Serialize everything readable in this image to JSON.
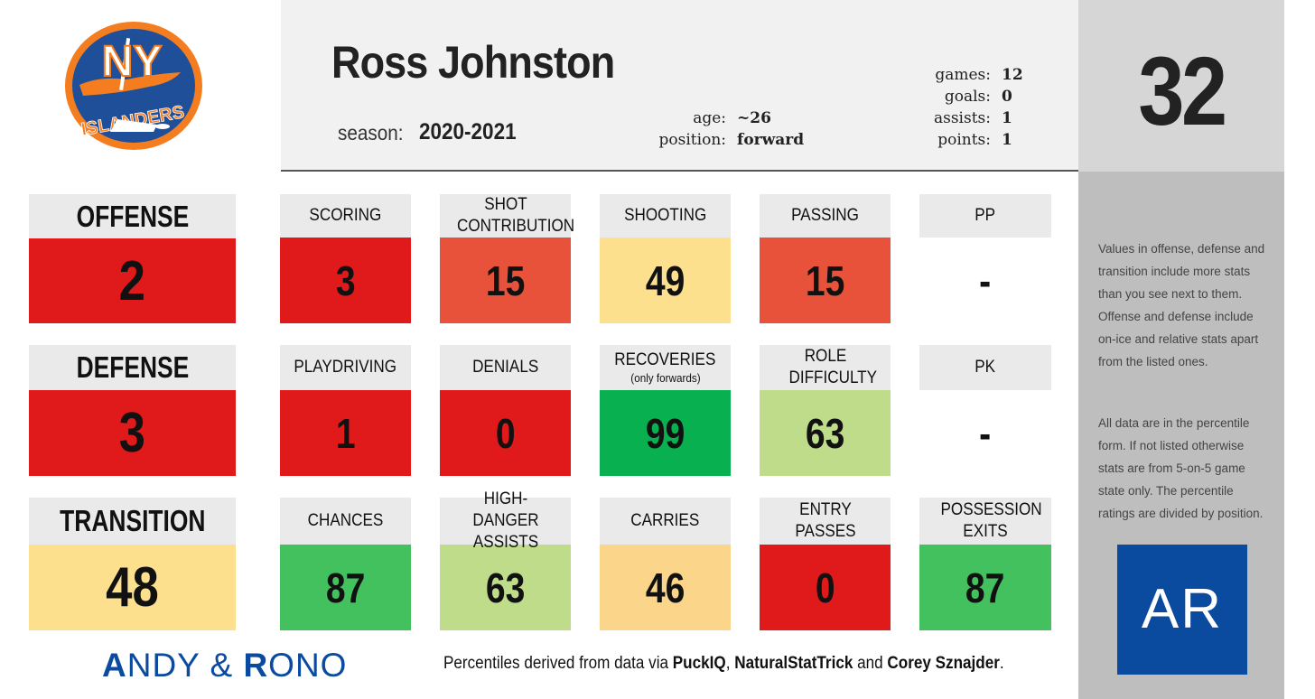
{
  "team_logo": {
    "text_line1": "NY",
    "text_line2": "ISLANDERS"
  },
  "player": {
    "name": "Ross Johnston",
    "season_label": "season:",
    "season": "2020-2021",
    "age_label": "age:",
    "age": "~26",
    "position_label": "position:",
    "position": "forward",
    "games_label": "games:",
    "games": "12",
    "goals_label": "goals:",
    "goals": "0",
    "assists_label": "assists:",
    "assists": "1",
    "points_label": "points:",
    "points": "1",
    "number": "32"
  },
  "rows": [
    {
      "main": {
        "label": "OFFENSE",
        "value": "2",
        "color": "#e0191b"
      },
      "cells": [
        {
          "label": "SCORING",
          "value": "3",
          "color": "#e0191b"
        },
        {
          "label": "SHOT CONTRIBUTION",
          "value": "15",
          "color": "#e9523a"
        },
        {
          "label": "SHOOTING",
          "value": "49",
          "color": "#fde08e"
        },
        {
          "label": "PASSING",
          "value": "15",
          "color": "#e9523a"
        },
        {
          "label": "PP",
          "value": "-",
          "color": "#ffffff"
        }
      ]
    },
    {
      "main": {
        "label": "DEFENSE",
        "value": "3",
        "color": "#e0191b"
      },
      "cells": [
        {
          "label": "PLAYDRIVING",
          "value": "1",
          "color": "#e0191b"
        },
        {
          "label": "DENIALS",
          "value": "0",
          "color": "#e0191b"
        },
        {
          "label": "RECOVERIES",
          "sublabel": "(only forwards)",
          "value": "99",
          "color": "#08b04f"
        },
        {
          "label": "ROLE DIFFICULTY",
          "value": "63",
          "color": "#bedc8a"
        },
        {
          "label": "PK",
          "value": "-",
          "color": "#ffffff"
        }
      ]
    },
    {
      "main": {
        "label": "TRANSITION",
        "value": "48",
        "color": "#fde08e"
      },
      "cells": [
        {
          "label": "CHANCES",
          "value": "87",
          "color": "#43c15f"
        },
        {
          "label": "HIGH-DANGER ASSISTS",
          "value": "63",
          "color": "#bedc8a"
        },
        {
          "label": "CARRIES",
          "value": "46",
          "color": "#fbd58a"
        },
        {
          "label": "ENTRY PASSES",
          "value": "0",
          "color": "#e0191b"
        },
        {
          "label": "POSSESSION EXITS",
          "value": "87",
          "color": "#43c15f"
        }
      ]
    }
  ],
  "notes": {
    "note1": "Values in offense, defense and transition include more stats than you see next to them. Offense and defense include on-ice and relative stats apart from the listed ones.",
    "note2": "All data are in the percentile form. If not listed otherwise stats are from 5-on-5 game state only. The percentile ratings are divided by position."
  },
  "brand": {
    "a": "A",
    "ndy": "NDY & ",
    "r": "R",
    "ono": "ONO"
  },
  "ar_logo": "AR",
  "footer": {
    "prefix": "Percentiles derived from data via ",
    "source1": "PuckIQ",
    "sep1": ", ",
    "source2": "NaturalStatTrick",
    "sep2": " and ",
    "source3": "Corey Sznajder",
    "suffix": "."
  }
}
